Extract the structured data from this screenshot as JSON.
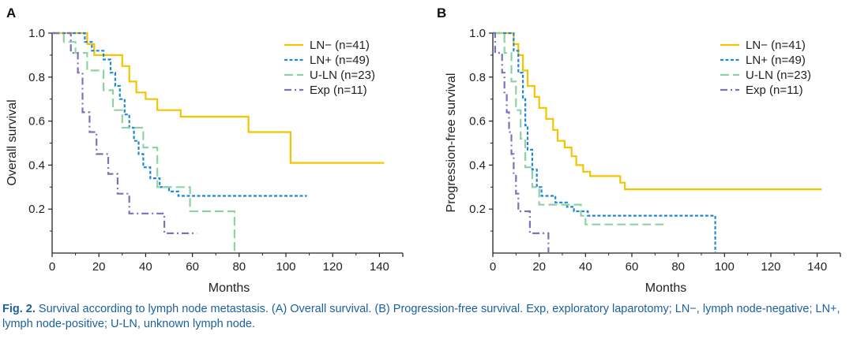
{
  "colors": {
    "LN-": "#f5c400",
    "LN+": "#1e88d8",
    "U-LN": "#8fd1a6",
    "Exp": "#7b72b8",
    "axis": "#222222",
    "caption": "#1b5f9e"
  },
  "chart_data": [
    {
      "type": "line",
      "step": true,
      "panel_label": "A",
      "title": "",
      "xlabel": "Months",
      "ylabel": "Overall survival",
      "xlim": [
        0,
        150
      ],
      "ylim": [
        0,
        1.0
      ],
      "xticks": [
        "0",
        "20",
        "40",
        "60",
        "80",
        "100",
        "120",
        "140"
      ],
      "yticks": [
        "0.2",
        "0.4",
        "0.6",
        "0.8",
        "1.0"
      ],
      "legend_position": "top-right",
      "series": [
        {
          "key": "LN-",
          "name": "LN− (n=41)",
          "style": "solid",
          "points": [
            [
              0,
              1.0
            ],
            [
              15,
              1.0
            ],
            [
              15,
              0.95
            ],
            [
              18,
              0.95
            ],
            [
              18,
              0.9
            ],
            [
              30,
              0.9
            ],
            [
              30,
              0.85
            ],
            [
              33,
              0.85
            ],
            [
              33,
              0.78
            ],
            [
              36,
              0.78
            ],
            [
              36,
              0.73
            ],
            [
              40,
              0.73
            ],
            [
              40,
              0.7
            ],
            [
              45,
              0.7
            ],
            [
              45,
              0.65
            ],
            [
              55,
              0.65
            ],
            [
              55,
              0.62
            ],
            [
              84,
              0.62
            ],
            [
              84,
              0.55
            ],
            [
              102,
              0.55
            ],
            [
              102,
              0.41
            ],
            [
              142,
              0.41
            ]
          ]
        },
        {
          "key": "LN+",
          "name": "LN+ (n=49)",
          "style": "dashed",
          "points": [
            [
              0,
              1.0
            ],
            [
              14,
              1.0
            ],
            [
              14,
              0.96
            ],
            [
              17,
              0.96
            ],
            [
              17,
              0.92
            ],
            [
              22,
              0.92
            ],
            [
              22,
              0.88
            ],
            [
              25,
              0.88
            ],
            [
              25,
              0.82
            ],
            [
              27,
              0.82
            ],
            [
              27,
              0.76
            ],
            [
              29,
              0.76
            ],
            [
              29,
              0.7
            ],
            [
              31,
              0.7
            ],
            [
              31,
              0.63
            ],
            [
              33,
              0.63
            ],
            [
              33,
              0.57
            ],
            [
              35,
              0.57
            ],
            [
              35,
              0.51
            ],
            [
              37,
              0.51
            ],
            [
              37,
              0.45
            ],
            [
              39,
              0.45
            ],
            [
              39,
              0.39
            ],
            [
              42,
              0.39
            ],
            [
              42,
              0.34
            ],
            [
              46,
              0.34
            ],
            [
              46,
              0.3
            ],
            [
              50,
              0.3
            ],
            [
              50,
              0.28
            ],
            [
              54,
              0.28
            ],
            [
              54,
              0.26
            ],
            [
              109,
              0.26
            ]
          ]
        },
        {
          "key": "U-LN",
          "name": "U-LN (n=23)",
          "style": "longdash",
          "points": [
            [
              0,
              1.0
            ],
            [
              5,
              1.0
            ],
            [
              5,
              0.96
            ],
            [
              10,
              0.96
            ],
            [
              10,
              0.91
            ],
            [
              15,
              0.91
            ],
            [
              15,
              0.83
            ],
            [
              22,
              0.83
            ],
            [
              22,
              0.74
            ],
            [
              26,
              0.74
            ],
            [
              26,
              0.65
            ],
            [
              30,
              0.65
            ],
            [
              30,
              0.57
            ],
            [
              39,
              0.57
            ],
            [
              39,
              0.48
            ],
            [
              45,
              0.48
            ],
            [
              45,
              0.3
            ],
            [
              59,
              0.3
            ],
            [
              59,
              0.19
            ],
            [
              78,
              0.19
            ],
            [
              78,
              0.0
            ]
          ]
        },
        {
          "key": "Exp",
          "name": "Exp (n=11)",
          "style": "dashdot",
          "points": [
            [
              0,
              1.0
            ],
            [
              8,
              1.0
            ],
            [
              8,
              0.91
            ],
            [
              11,
              0.91
            ],
            [
              11,
              0.82
            ],
            [
              13,
              0.82
            ],
            [
              13,
              0.64
            ],
            [
              16,
              0.64
            ],
            [
              16,
              0.55
            ],
            [
              19,
              0.55
            ],
            [
              19,
              0.45
            ],
            [
              24,
              0.45
            ],
            [
              24,
              0.36
            ],
            [
              28,
              0.36
            ],
            [
              28,
              0.27
            ],
            [
              33,
              0.27
            ],
            [
              33,
              0.18
            ],
            [
              48,
              0.18
            ],
            [
              48,
              0.09
            ],
            [
              62,
              0.09
            ]
          ]
        }
      ]
    },
    {
      "type": "line",
      "step": true,
      "panel_label": "B",
      "title": "",
      "xlabel": "Months",
      "ylabel": "Progression-free survival",
      "xlim": [
        0,
        150
      ],
      "ylim": [
        0,
        1.0
      ],
      "xticks": [
        "0",
        "20",
        "40",
        "60",
        "80",
        "100",
        "120",
        "140"
      ],
      "yticks": [
        "0.2",
        "0.4",
        "0.6",
        "0.8",
        "1.0"
      ],
      "legend_position": "top-right",
      "series": [
        {
          "key": "LN-",
          "name": "LN− (n=41)",
          "style": "solid",
          "points": [
            [
              0,
              1.0
            ],
            [
              9,
              1.0
            ],
            [
              9,
              0.95
            ],
            [
              11,
              0.95
            ],
            [
              11,
              0.9
            ],
            [
              13,
              0.9
            ],
            [
              13,
              0.83
            ],
            [
              15,
              0.83
            ],
            [
              15,
              0.76
            ],
            [
              18,
              0.76
            ],
            [
              18,
              0.71
            ],
            [
              20,
              0.71
            ],
            [
              20,
              0.66
            ],
            [
              23,
              0.66
            ],
            [
              23,
              0.61
            ],
            [
              26,
              0.61
            ],
            [
              26,
              0.56
            ],
            [
              28,
              0.56
            ],
            [
              28,
              0.51
            ],
            [
              31,
              0.51
            ],
            [
              31,
              0.48
            ],
            [
              34,
              0.48
            ],
            [
              34,
              0.44
            ],
            [
              36,
              0.44
            ],
            [
              36,
              0.4
            ],
            [
              39,
              0.4
            ],
            [
              39,
              0.37
            ],
            [
              42,
              0.37
            ],
            [
              42,
              0.35
            ],
            [
              55,
              0.35
            ],
            [
              55,
              0.32
            ],
            [
              57,
              0.32
            ],
            [
              57,
              0.29
            ],
            [
              142,
              0.29
            ]
          ]
        },
        {
          "key": "LN+",
          "name": "LN+ (n=49)",
          "style": "dashed",
          "points": [
            [
              0,
              1.0
            ],
            [
              9,
              1.0
            ],
            [
              9,
              0.92
            ],
            [
              11,
              0.92
            ],
            [
              11,
              0.82
            ],
            [
              13,
              0.82
            ],
            [
              13,
              0.7
            ],
            [
              14,
              0.7
            ],
            [
              14,
              0.58
            ],
            [
              15,
              0.58
            ],
            [
              15,
              0.47
            ],
            [
              17,
              0.47
            ],
            [
              17,
              0.38
            ],
            [
              19,
              0.38
            ],
            [
              19,
              0.3
            ],
            [
              21,
              0.3
            ],
            [
              21,
              0.26
            ],
            [
              27,
              0.26
            ],
            [
              27,
              0.23
            ],
            [
              32,
              0.23
            ],
            [
              32,
              0.21
            ],
            [
              35,
              0.21
            ],
            [
              35,
              0.19
            ],
            [
              41,
              0.19
            ],
            [
              41,
              0.17
            ],
            [
              96,
              0.17
            ],
            [
              96,
              0.0
            ]
          ]
        },
        {
          "key": "U-LN",
          "name": "U-LN (n=23)",
          "style": "longdash",
          "points": [
            [
              0,
              1.0
            ],
            [
              5,
              1.0
            ],
            [
              5,
              0.91
            ],
            [
              8,
              0.91
            ],
            [
              8,
              0.78
            ],
            [
              10,
              0.78
            ],
            [
              10,
              0.65
            ],
            [
              12,
              0.65
            ],
            [
              12,
              0.52
            ],
            [
              14,
              0.52
            ],
            [
              14,
              0.39
            ],
            [
              17,
              0.39
            ],
            [
              17,
              0.3
            ],
            [
              20,
              0.3
            ],
            [
              20,
              0.22
            ],
            [
              38,
              0.22
            ],
            [
              38,
              0.17
            ],
            [
              40,
              0.17
            ],
            [
              40,
              0.13
            ],
            [
              75,
              0.13
            ]
          ]
        },
        {
          "key": "Exp",
          "name": "Exp (n=11)",
          "style": "dashdot",
          "points": [
            [
              0,
              1.0
            ],
            [
              1,
              1.0
            ],
            [
              1,
              0.91
            ],
            [
              4,
              0.91
            ],
            [
              4,
              0.82
            ],
            [
              5,
              0.82
            ],
            [
              5,
              0.73
            ],
            [
              6,
              0.73
            ],
            [
              6,
              0.64
            ],
            [
              7,
              0.64
            ],
            [
              7,
              0.55
            ],
            [
              8,
              0.55
            ],
            [
              8,
              0.45
            ],
            [
              9,
              0.45
            ],
            [
              9,
              0.36
            ],
            [
              10,
              0.36
            ],
            [
              10,
              0.27
            ],
            [
              11,
              0.27
            ],
            [
              11,
              0.19
            ],
            [
              16,
              0.19
            ],
            [
              16,
              0.09
            ],
            [
              24,
              0.09
            ],
            [
              24,
              0.0
            ]
          ]
        }
      ]
    }
  ],
  "caption": {
    "label": "Fig. 2.",
    "text": " Survival according to lymph node metastasis. (A) Overall survival. (B) Progression-free survival. Exp, exploratory laparotomy; LN−, lymph node-negative; LN+, lymph node-positive; U-LN, unknown lymph node."
  }
}
